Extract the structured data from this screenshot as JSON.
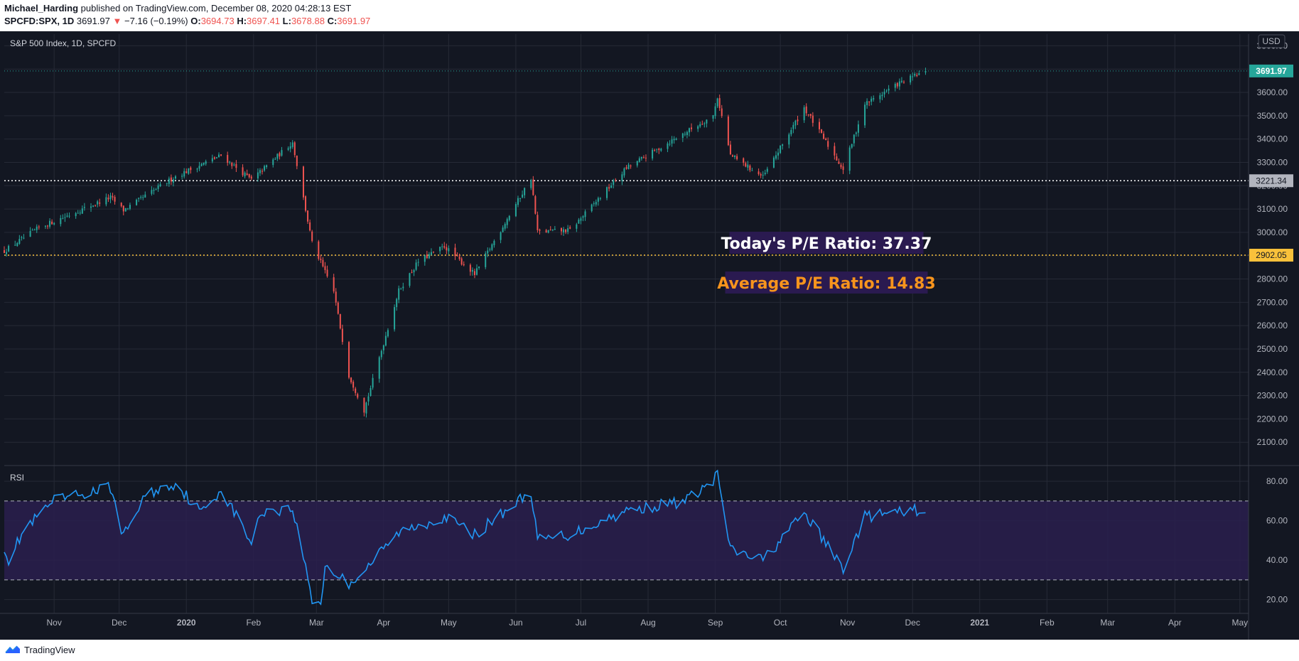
{
  "header": {
    "author": "Michael_Harding",
    "published_text": "published on TradingView.com, December 08, 2020 04:28:13 EST",
    "symbol": "SPCFD:SPX, 1D",
    "last": "3691.97",
    "down_arrow": "▼",
    "change": "−7.16 (−0.19%)",
    "o_label": "O:",
    "o_value": "3694.73",
    "h_label": "H:",
    "h_value": "3697.41",
    "l_label": "L:",
    "l_value": "3678.88",
    "c_label": "C:",
    "c_value": "3691.97"
  },
  "footer": {
    "brand": "TradingView",
    "logo_icon": "tradingview-logo-icon"
  },
  "colors": {
    "background": "#131722",
    "grid": "#262a36",
    "up_candle": "#26a69a",
    "down_candle": "#ef5350",
    "rsi_line": "#2196f3",
    "rsi_band": "#2a1f4e",
    "level_white": "#ffffff",
    "level_yellow": "#f9c13b",
    "price_badge": "#26a69a",
    "pe_today_text": "#ffffff",
    "pe_average_text": "#f7941d",
    "label_box": "#2a1a50"
  },
  "chart_data": [
    {
      "type": "candlestick",
      "title": "S&P 500 Index, 1D, SPCFD",
      "currency": "USD",
      "ylim": [
        2000,
        3850
      ],
      "yticks": [
        "3800.00",
        "3700.00",
        "3600.00",
        "3500.00",
        "3400.00",
        "3300.00",
        "3200.00",
        "3100.00",
        "3000.00",
        "2900.00",
        "2800.00",
        "2700.00",
        "2600.00",
        "2500.00",
        "2400.00",
        "2300.00",
        "2200.00",
        "2100.00"
      ],
      "x_tick_labels": [
        "Nov",
        "Dec",
        "2020",
        "Feb",
        "Mar",
        "Apr",
        "May",
        "Jun",
        "Jul",
        "Aug",
        "Sep",
        "Oct",
        "Nov",
        "Dec",
        "2021",
        "Feb",
        "Mar",
        "Apr",
        "May"
      ],
      "x_range": [
        "2019-10-09",
        "2021-05-05"
      ],
      "last_price": {
        "value": 3691.97,
        "label": "3691.97"
      },
      "horizontal_lines": [
        {
          "value": 3221.34,
          "label": "3221.34",
          "style": "dotted",
          "color": "white"
        },
        {
          "value": 2902.05,
          "label": "2902.05",
          "style": "dotted",
          "color": "yellow"
        }
      ],
      "annotations": [
        {
          "text": "Today's P/E Ratio: 37.37",
          "color": "white"
        },
        {
          "text": "Average P/E Ratio: 14.83",
          "color": "orange"
        }
      ],
      "close_anchors": [
        {
          "date": "2019-10-09",
          "close": 2920
        },
        {
          "date": "2019-10-25",
          "close": 3020
        },
        {
          "date": "2019-11-27",
          "close": 3150
        },
        {
          "date": "2019-12-03",
          "close": 3095
        },
        {
          "date": "2019-12-27",
          "close": 3240
        },
        {
          "date": "2020-01-17",
          "close": 3330
        },
        {
          "date": "2020-01-31",
          "close": 3225
        },
        {
          "date": "2020-02-19",
          "close": 3386
        },
        {
          "date": "2020-02-28",
          "close": 2954
        },
        {
          "date": "2020-03-09",
          "close": 2746
        },
        {
          "date": "2020-03-16",
          "close": 2386
        },
        {
          "date": "2020-03-23",
          "close": 2237
        },
        {
          "date": "2020-04-08",
          "close": 2750
        },
        {
          "date": "2020-04-17",
          "close": 2875
        },
        {
          "date": "2020-04-29",
          "close": 2940
        },
        {
          "date": "2020-05-13",
          "close": 2820
        },
        {
          "date": "2020-06-08",
          "close": 3232
        },
        {
          "date": "2020-06-11",
          "close": 3002
        },
        {
          "date": "2020-06-26",
          "close": 3009
        },
        {
          "date": "2020-07-22",
          "close": 3276
        },
        {
          "date": "2020-08-31",
          "close": 3500
        },
        {
          "date": "2020-09-02",
          "close": 3580
        },
        {
          "date": "2020-09-08",
          "close": 3331
        },
        {
          "date": "2020-09-23",
          "close": 3237
        },
        {
          "date": "2020-10-12",
          "close": 3534
        },
        {
          "date": "2020-10-30",
          "close": 3270
        },
        {
          "date": "2020-11-09",
          "close": 3550
        },
        {
          "date": "2020-11-24",
          "close": 3635
        },
        {
          "date": "2020-12-07",
          "close": 3691.97
        }
      ]
    },
    {
      "type": "line",
      "title": "RSI",
      "ylim": [
        13,
        88
      ],
      "yticks": [
        "80.00",
        "60.00",
        "40.00",
        "20.00"
      ],
      "band": [
        30,
        70
      ],
      "anchors": [
        {
          "date": "2019-10-09",
          "value": 47
        },
        {
          "date": "2019-10-11",
          "value": 40
        },
        {
          "date": "2019-10-18",
          "value": 55
        },
        {
          "date": "2019-11-01",
          "value": 70
        },
        {
          "date": "2019-11-27",
          "value": 77
        },
        {
          "date": "2019-12-03",
          "value": 52
        },
        {
          "date": "2019-12-13",
          "value": 73
        },
        {
          "date": "2019-12-27",
          "value": 79
        },
        {
          "date": "2020-01-08",
          "value": 64
        },
        {
          "date": "2020-01-17",
          "value": 76
        },
        {
          "date": "2020-01-31",
          "value": 49
        },
        {
          "date": "2020-02-05",
          "value": 65
        },
        {
          "date": "2020-02-19",
          "value": 66
        },
        {
          "date": "2020-02-24",
          "value": 42
        },
        {
          "date": "2020-02-28",
          "value": 20
        },
        {
          "date": "2020-03-03",
          "value": 18
        },
        {
          "date": "2020-03-05",
          "value": 37
        },
        {
          "date": "2020-03-16",
          "value": 28
        },
        {
          "date": "2020-03-24",
          "value": 36
        },
        {
          "date": "2020-04-08",
          "value": 54
        },
        {
          "date": "2020-04-29",
          "value": 62
        },
        {
          "date": "2020-05-13",
          "value": 53
        },
        {
          "date": "2020-06-08",
          "value": 75
        },
        {
          "date": "2020-06-11",
          "value": 50
        },
        {
          "date": "2020-06-26",
          "value": 53
        },
        {
          "date": "2020-07-22",
          "value": 65
        },
        {
          "date": "2020-08-18",
          "value": 70
        },
        {
          "date": "2020-08-31",
          "value": 80
        },
        {
          "date": "2020-09-02",
          "value": 84
        },
        {
          "date": "2020-09-08",
          "value": 45
        },
        {
          "date": "2020-09-23",
          "value": 40
        },
        {
          "date": "2020-10-12",
          "value": 64
        },
        {
          "date": "2020-10-30",
          "value": 36
        },
        {
          "date": "2020-11-09",
          "value": 62
        },
        {
          "date": "2020-11-24",
          "value": 64
        },
        {
          "date": "2020-12-07",
          "value": 66
        }
      ]
    }
  ]
}
